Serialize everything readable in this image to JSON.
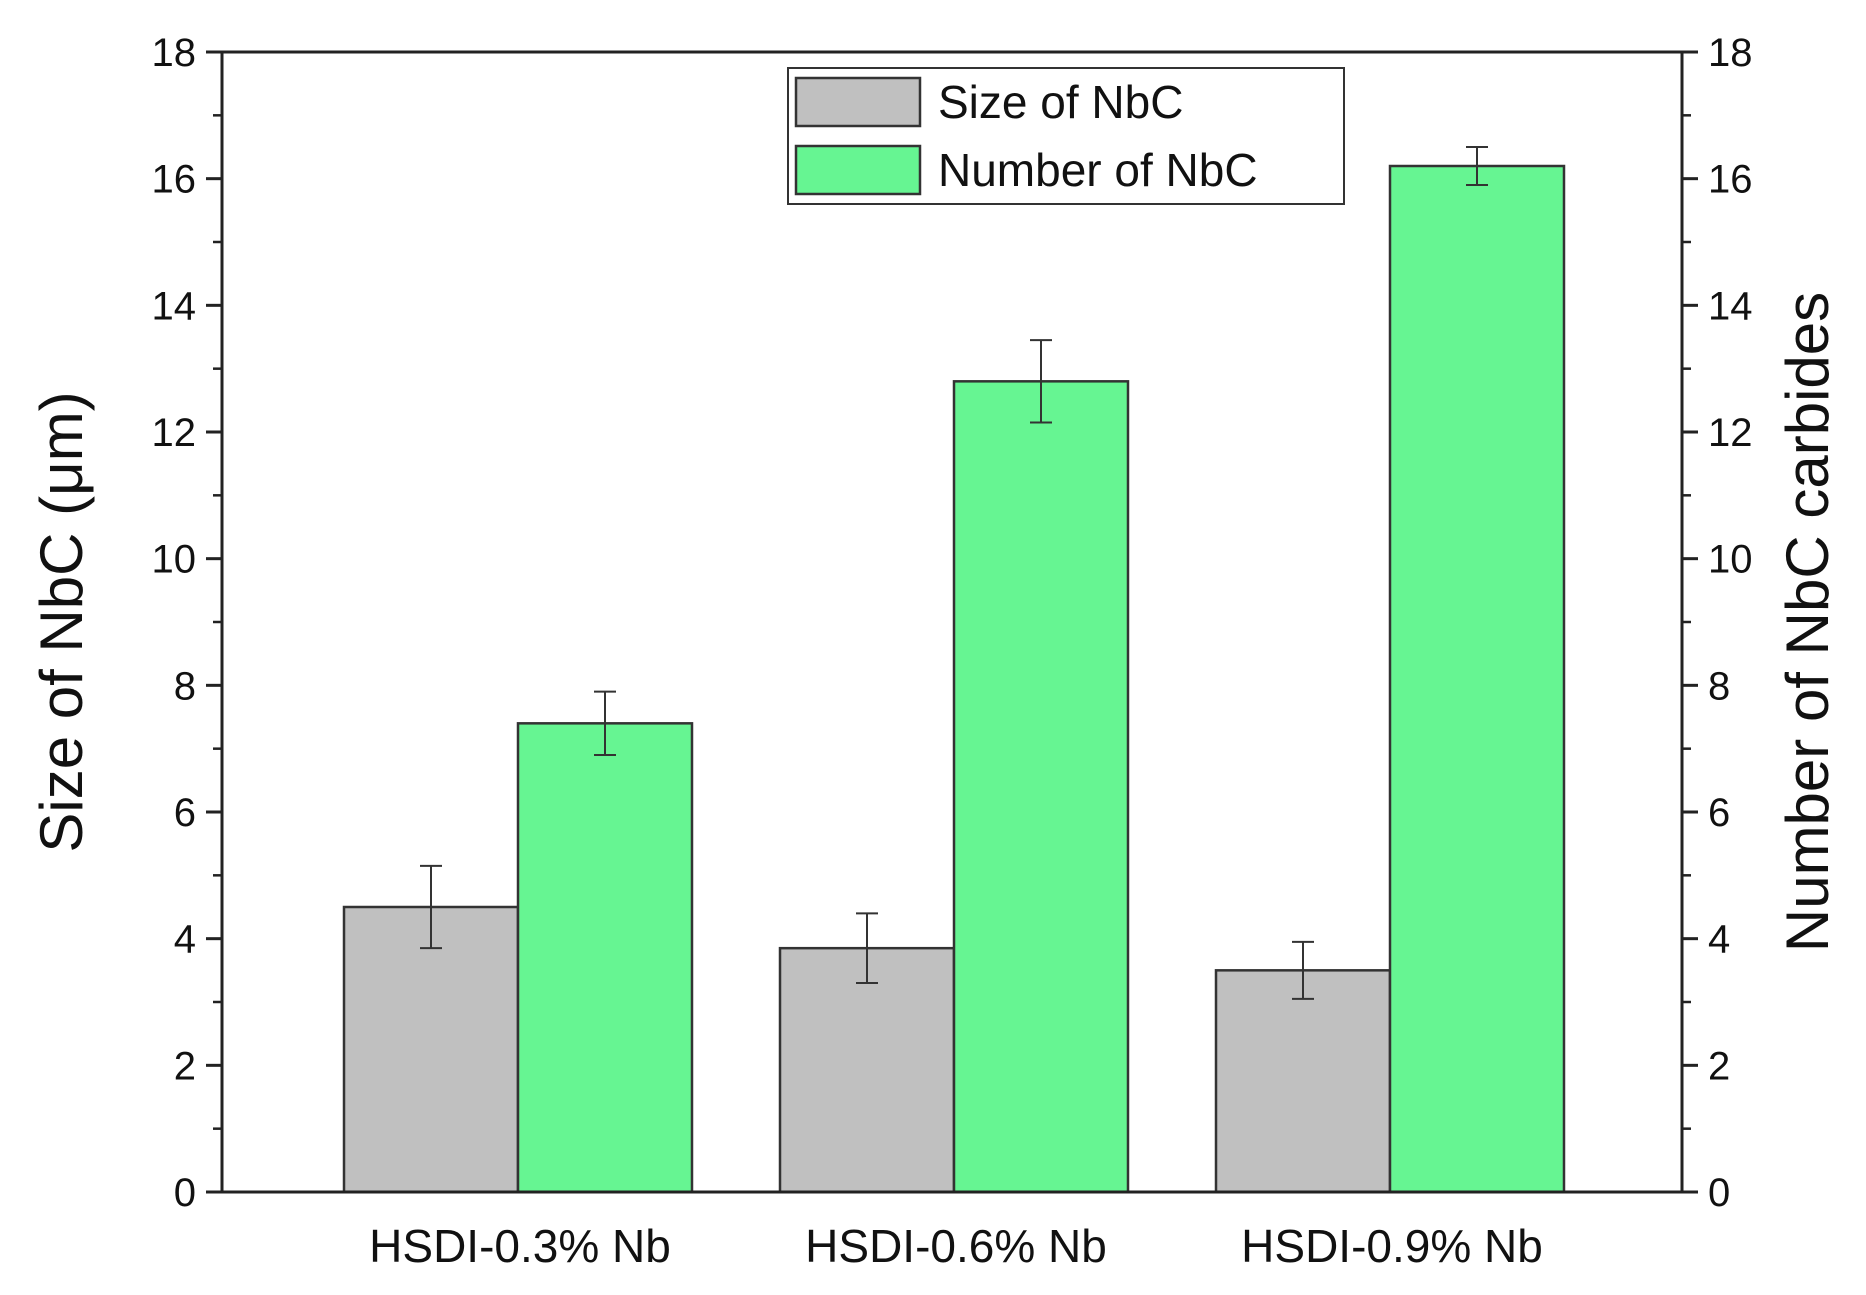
{
  "chart_data": {
    "type": "bar",
    "categories": [
      "HSDI-0.3% Nb",
      "HSDI-0.6% Nb",
      "HSDI-0.9% Nb"
    ],
    "series": [
      {
        "name": "Size of NbC",
        "axis": "left",
        "color": "#c0c0c0",
        "values": [
          4.5,
          3.85,
          3.5
        ],
        "errors": [
          0.65,
          0.55,
          0.45
        ]
      },
      {
        "name": "Number of NbC",
        "axis": "right",
        "color": "#66f592",
        "values": [
          7.4,
          12.8,
          16.2
        ],
        "errors": [
          0.5,
          0.65,
          0.3
        ]
      }
    ],
    "ylabel": "Size of NbC (μm)",
    "y2label": "Number of NbC carbides",
    "xlabel": "",
    "ylim": [
      0,
      18
    ],
    "y2lim": [
      0,
      18
    ],
    "yticks": [
      "0",
      "2",
      "4",
      "6",
      "8",
      "10",
      "12",
      "14",
      "16",
      "18"
    ],
    "y2ticks": [
      "0",
      "2",
      "4",
      "6",
      "8",
      "10",
      "12",
      "14",
      "16",
      "18"
    ],
    "grid": false,
    "legend": "top-center"
  }
}
